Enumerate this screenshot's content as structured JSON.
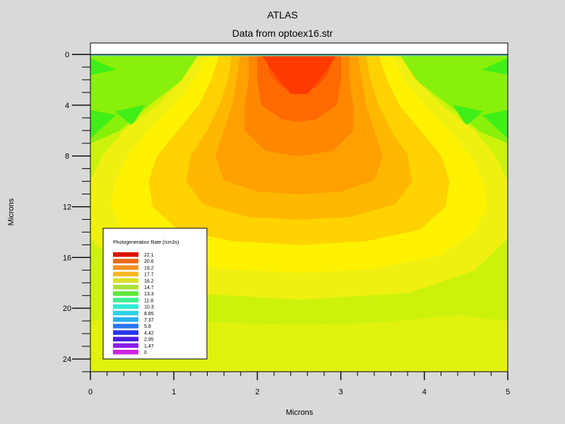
{
  "chart_data": {
    "type": "heatmap",
    "title": "ATLAS",
    "subtitle": "Data from optoex16.str",
    "xlabel": "Microns",
    "ylabel": "Microns",
    "xlim": [
      0,
      5
    ],
    "ylim": [
      0,
      25
    ],
    "y_inverted": true,
    "x_ticks": [
      "0",
      "1",
      "2",
      "3",
      "4",
      "5"
    ],
    "y_ticks": [
      "0",
      "4",
      "8",
      "12",
      "16",
      "20",
      "24"
    ],
    "x_tick_values": [
      0,
      1,
      2,
      3,
      4,
      5
    ],
    "y_tick_values": [
      0,
      4,
      8,
      12,
      16,
      20,
      24
    ],
    "top_layer": {
      "y_from": -0.9,
      "y_to": 0,
      "color": "#ffffff"
    },
    "legend": {
      "title": "Photogeneration Rate (/cm3s)",
      "position": "bottom-left",
      "entries": [
        {
          "label": "22.1",
          "color": "#dd1100"
        },
        {
          "label": "20.6",
          "color": "#e86a1a"
        },
        {
          "label": "19.2",
          "color": "#f29220"
        },
        {
          "label": "17.7",
          "color": "#f7b822"
        },
        {
          "label": "16.2",
          "color": "#d8e02a"
        },
        {
          "label": "14.7",
          "color": "#a8e23a"
        },
        {
          "label": "13.3",
          "color": "#5ee83a"
        },
        {
          "label": "11.8",
          "color": "#3ef08e"
        },
        {
          "label": "10.3",
          "color": "#33e8d6"
        },
        {
          "label": "8.85",
          "color": "#2fd2ea"
        },
        {
          "label": "7.37",
          "color": "#2aaef0"
        },
        {
          "label": "5.9",
          "color": "#2678f0"
        },
        {
          "label": "4.42",
          "color": "#2a38e8"
        },
        {
          "label": "2.95",
          "color": "#4a1ee0"
        },
        {
          "label": "1.47",
          "color": "#8a1ee6"
        },
        {
          "label": "0",
          "color": "#cc22dd"
        }
      ]
    },
    "regions": [
      {
        "level": "bg",
        "color": "#e0f20c",
        "points": [
          [
            0,
            0
          ],
          [
            5,
            0
          ],
          [
            5,
            25
          ],
          [
            0,
            25
          ]
        ]
      },
      {
        "level": "yellow-green",
        "color": "#ccf20c",
        "points": [
          [
            0,
            0
          ],
          [
            5,
            0
          ],
          [
            5,
            21
          ],
          [
            4.4,
            20.5
          ],
          [
            3.5,
            21.1
          ],
          [
            2.5,
            21.3
          ],
          [
            1.5,
            21.1
          ],
          [
            0.6,
            20.5
          ],
          [
            0,
            21
          ]
        ]
      },
      {
        "level": "14.7",
        "color": "#88f00a",
        "points": [
          [
            0,
            0.1
          ],
          [
            1.3,
            0.1
          ],
          [
            1.1,
            2
          ],
          [
            0.7,
            4
          ],
          [
            0.35,
            6
          ],
          [
            0,
            7
          ],
          [
            0,
            0.1
          ]
        ]
      },
      {
        "level": "14.7-r",
        "color": "#88f00a",
        "points": [
          [
            5,
            0.1
          ],
          [
            3.7,
            0.1
          ],
          [
            3.9,
            2
          ],
          [
            4.3,
            4
          ],
          [
            4.65,
            6
          ],
          [
            5,
            7
          ],
          [
            5,
            0.1
          ]
        ]
      },
      {
        "level": "13.3",
        "color": "#40ee18",
        "points": [
          [
            0,
            0.3
          ],
          [
            0.3,
            1.2
          ],
          [
            0,
            1.6
          ]
        ]
      },
      {
        "level": "13.3-b",
        "color": "#40ee18",
        "points": [
          [
            0,
            4.4
          ],
          [
            0.3,
            4.8
          ],
          [
            0,
            6.6
          ]
        ]
      },
      {
        "level": "13.3-c",
        "color": "#40ee18",
        "points": [
          [
            0.3,
            4.5
          ],
          [
            0.65,
            4.0
          ],
          [
            0.5,
            5.6
          ]
        ]
      },
      {
        "level": "13.3-r",
        "color": "#40ee18",
        "points": [
          [
            5,
            0.3
          ],
          [
            4.7,
            1.2
          ],
          [
            5,
            1.6
          ]
        ]
      },
      {
        "level": "13.3-rb",
        "color": "#40ee18",
        "points": [
          [
            5,
            4.4
          ],
          [
            4.7,
            4.8
          ],
          [
            5,
            6.6
          ]
        ]
      },
      {
        "level": "13.3-rc",
        "color": "#40ee18",
        "points": [
          [
            4.7,
            4.5
          ],
          [
            4.35,
            4.0
          ],
          [
            4.5,
            5.6
          ]
        ]
      },
      {
        "level": "16.2",
        "color": "#f0f010",
        "points": [
          [
            1.3,
            0
          ],
          [
            3.7,
            0
          ],
          [
            3.9,
            2
          ],
          [
            4.2,
            4
          ],
          [
            4.6,
            6
          ],
          [
            4.85,
            8
          ],
          [
            5,
            10
          ],
          [
            5,
            14.5
          ],
          [
            4.6,
            17
          ],
          [
            3.8,
            18.8
          ],
          [
            2.5,
            19.3
          ],
          [
            1.2,
            18.8
          ],
          [
            0.4,
            17
          ],
          [
            0,
            14.5
          ],
          [
            0,
            10
          ],
          [
            0.15,
            8
          ],
          [
            0.4,
            6
          ],
          [
            0.8,
            4
          ],
          [
            1.1,
            2
          ]
        ]
      },
      {
        "level": "17.1",
        "color": "#fff200",
        "points": [
          [
            1.4,
            0
          ],
          [
            3.6,
            0
          ],
          [
            3.75,
            2
          ],
          [
            4.0,
            4
          ],
          [
            4.3,
            6
          ],
          [
            4.55,
            8
          ],
          [
            4.7,
            10
          ],
          [
            4.75,
            12
          ],
          [
            4.6,
            14
          ],
          [
            4.2,
            15.8
          ],
          [
            3.4,
            16.9
          ],
          [
            2.5,
            17.2
          ],
          [
            1.6,
            16.9
          ],
          [
            0.8,
            15.8
          ],
          [
            0.4,
            14
          ],
          [
            0.25,
            12
          ],
          [
            0.3,
            10
          ],
          [
            0.45,
            8
          ],
          [
            0.7,
            6
          ],
          [
            1.0,
            4
          ],
          [
            1.25,
            2
          ]
        ]
      },
      {
        "level": "17.7",
        "color": "#ffd200",
        "points": [
          [
            1.55,
            0
          ],
          [
            3.45,
            0
          ],
          [
            3.55,
            2
          ],
          [
            3.7,
            4
          ],
          [
            3.95,
            6
          ],
          [
            4.2,
            8
          ],
          [
            4.3,
            10
          ],
          [
            4.25,
            12
          ],
          [
            3.95,
            13.8
          ],
          [
            3.3,
            14.7
          ],
          [
            2.5,
            15.0
          ],
          [
            1.7,
            14.7
          ],
          [
            1.05,
            13.8
          ],
          [
            0.75,
            12
          ],
          [
            0.7,
            10
          ],
          [
            0.8,
            8
          ],
          [
            1.05,
            6
          ],
          [
            1.3,
            4
          ],
          [
            1.45,
            2
          ]
        ]
      },
      {
        "level": "18.4",
        "color": "#ffb800",
        "points": [
          [
            1.7,
            0
          ],
          [
            3.3,
            0
          ],
          [
            3.35,
            2
          ],
          [
            3.45,
            4
          ],
          [
            3.6,
            6
          ],
          [
            3.8,
            8
          ],
          [
            3.85,
            10
          ],
          [
            3.65,
            11.8
          ],
          [
            3.1,
            12.8
          ],
          [
            2.5,
            13.0
          ],
          [
            1.9,
            12.8
          ],
          [
            1.35,
            11.8
          ],
          [
            1.15,
            10
          ],
          [
            1.2,
            8
          ],
          [
            1.4,
            6
          ],
          [
            1.55,
            4
          ],
          [
            1.65,
            2
          ]
        ]
      },
      {
        "level": "19.2",
        "color": "#ffa000",
        "points": [
          [
            1.8,
            0
          ],
          [
            3.2,
            0
          ],
          [
            3.25,
            2
          ],
          [
            3.3,
            4
          ],
          [
            3.4,
            6
          ],
          [
            3.5,
            8
          ],
          [
            3.4,
            9.9
          ],
          [
            3.0,
            10.8
          ],
          [
            2.5,
            11.0
          ],
          [
            2.0,
            10.8
          ],
          [
            1.6,
            9.9
          ],
          [
            1.5,
            8
          ],
          [
            1.6,
            6
          ],
          [
            1.7,
            4
          ],
          [
            1.75,
            2
          ]
        ]
      },
      {
        "level": "19.9",
        "color": "#ff8800",
        "points": [
          [
            1.9,
            0
          ],
          [
            3.1,
            0
          ],
          [
            3.1,
            2
          ],
          [
            3.15,
            4
          ],
          [
            3.15,
            6
          ],
          [
            2.9,
            7.6
          ],
          [
            2.5,
            8.0
          ],
          [
            2.1,
            7.6
          ],
          [
            1.85,
            6
          ],
          [
            1.85,
            4
          ],
          [
            1.9,
            2
          ]
        ]
      },
      {
        "level": "20.6",
        "color": "#ff6a00",
        "points": [
          [
            2.0,
            0
          ],
          [
            3.0,
            0
          ],
          [
            3.0,
            2
          ],
          [
            2.95,
            4
          ],
          [
            2.7,
            5.1
          ],
          [
            2.5,
            5.3
          ],
          [
            2.3,
            5.1
          ],
          [
            2.05,
            4
          ],
          [
            2.0,
            2
          ]
        ]
      },
      {
        "level": "21.4",
        "color": "#ff5200",
        "points": [
          [
            2.1,
            0
          ],
          [
            2.9,
            0
          ],
          [
            2.85,
            1.5
          ],
          [
            2.7,
            2.6
          ],
          [
            2.5,
            2.8
          ],
          [
            2.3,
            2.6
          ],
          [
            2.15,
            1.5
          ]
        ]
      },
      {
        "level": "22.1",
        "color": "#ff3a00",
        "points": [
          [
            2.05,
            0
          ],
          [
            2.95,
            0
          ],
          [
            2.85,
            1.0
          ],
          [
            2.7,
            2.3
          ],
          [
            2.6,
            3.1
          ],
          [
            2.4,
            3.1
          ],
          [
            2.3,
            2.3
          ],
          [
            2.15,
            1.0
          ]
        ]
      }
    ]
  }
}
